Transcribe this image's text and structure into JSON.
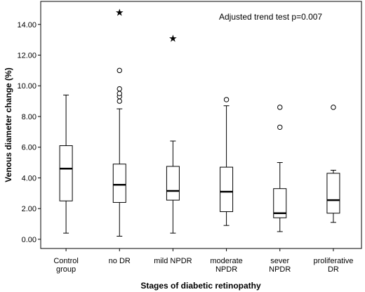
{
  "chart_data": {
    "type": "boxplot",
    "title": "",
    "annotation": "Adjusted trend test p=0.007",
    "xlabel": "Stages of diabetic retinopathy",
    "ylabel": "Venous diameter change (%)",
    "ylim": [
      -0.6,
      15.5
    ],
    "yticks": [
      0,
      2,
      4,
      6,
      8,
      10,
      12,
      14
    ],
    "ytick_labels": [
      "0.00",
      "2.00",
      "4.00",
      "6.00",
      "8.00",
      "10.00",
      "12.00",
      "14.00"
    ],
    "grid": false,
    "categories": [
      {
        "lines": [
          "Control",
          "group"
        ]
      },
      {
        "lines": [
          "no DR"
        ]
      },
      {
        "lines": [
          "mild NPDR"
        ]
      },
      {
        "lines": [
          "moderate",
          "NPDR"
        ]
      },
      {
        "lines": [
          "sever",
          "NPDR"
        ]
      },
      {
        "lines": [
          "proliferative",
          "DR"
        ]
      }
    ],
    "boxes": [
      {
        "whisker_low": 0.4,
        "q1": 2.5,
        "median": 4.6,
        "q3": 6.1,
        "whisker_high": 9.4,
        "outliers": [],
        "extremes": []
      },
      {
        "whisker_low": 0.2,
        "q1": 2.4,
        "median": 3.55,
        "q3": 4.9,
        "whisker_high": 8.5,
        "outliers": [
          9.0,
          9.3,
          9.5,
          9.8,
          11.0
        ],
        "extremes": [
          14.8
        ]
      },
      {
        "whisker_low": 0.4,
        "q1": 2.55,
        "median": 3.15,
        "q3": 4.75,
        "whisker_high": 6.4,
        "outliers": [],
        "extremes": [
          13.1
        ]
      },
      {
        "whisker_low": 0.9,
        "q1": 1.8,
        "median": 3.1,
        "q3": 4.7,
        "whisker_high": 8.7,
        "outliers": [
          9.1
        ],
        "extremes": []
      },
      {
        "whisker_low": 0.5,
        "q1": 1.4,
        "median": 1.7,
        "q3": 3.3,
        "whisker_high": 5.0,
        "outliers": [
          7.3,
          8.6
        ],
        "extremes": []
      },
      {
        "whisker_low": 1.1,
        "q1": 1.7,
        "median": 2.55,
        "q3": 4.3,
        "whisker_high": 4.5,
        "outliers": [
          8.6
        ],
        "extremes": []
      }
    ]
  }
}
